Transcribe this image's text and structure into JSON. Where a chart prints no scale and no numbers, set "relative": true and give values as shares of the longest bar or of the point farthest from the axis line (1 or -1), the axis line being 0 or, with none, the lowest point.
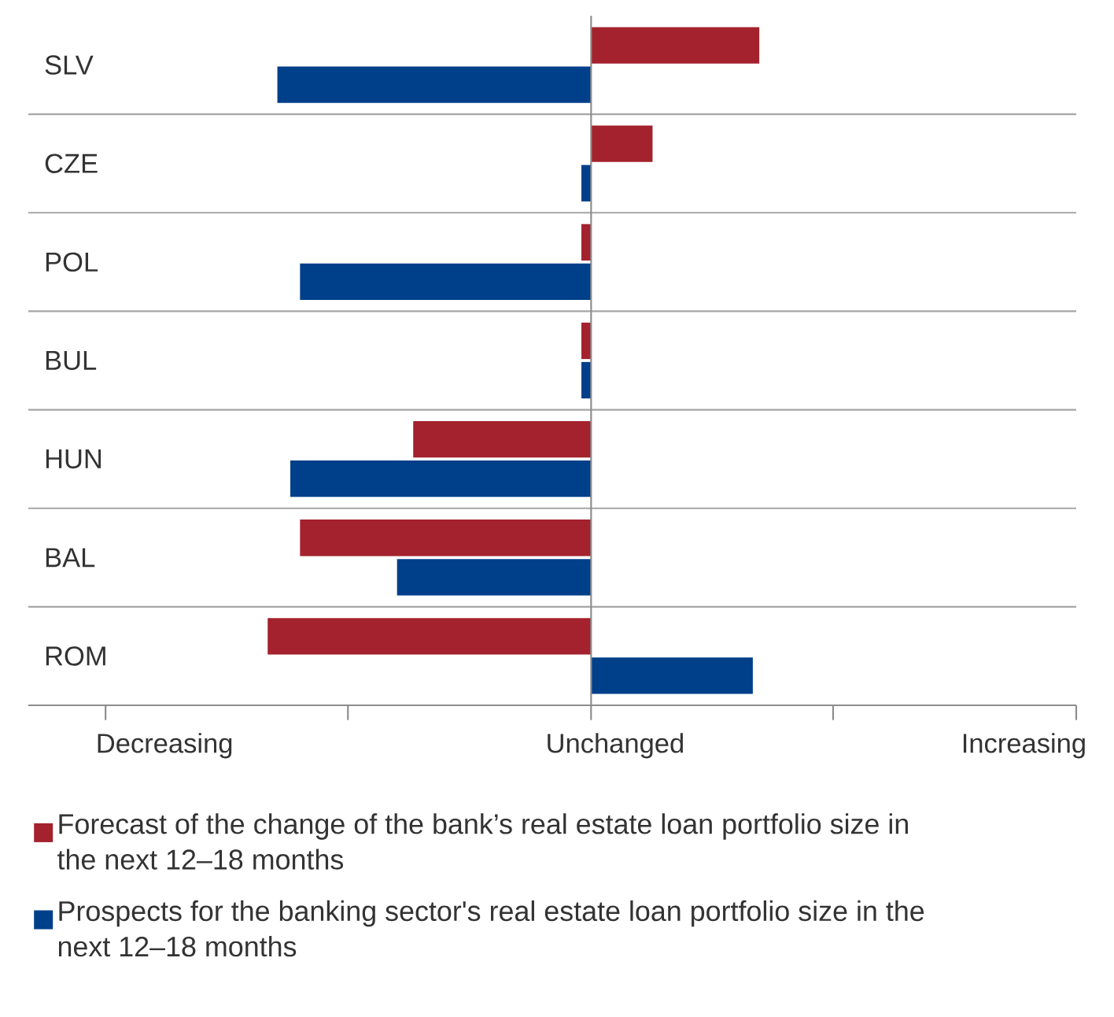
{
  "chart_data": {
    "type": "bar",
    "orientation": "horizontal",
    "relative": true,
    "categories": [
      "SLV",
      "CZE",
      "POL",
      "BUL",
      "HUN",
      "BAL",
      "ROM"
    ],
    "series": [
      {
        "name": "Forecast of the change of the bank’s real estate loan portfolio size in the next 12–18 months",
        "color": "#a3222d",
        "values": [
          0.52,
          0.19,
          -0.03,
          -0.03,
          -0.55,
          -0.9,
          -1
        ]
      },
      {
        "name": "Prospects for the banking sector's real estate loan portfolio size in the next 12–18 months",
        "color": "#003f8a",
        "values": [
          -0.97,
          -0.03,
          -0.9,
          -0.03,
          -0.93,
          -0.6,
          0.5
        ]
      }
    ],
    "annotations": [
      "Decreasing",
      "Unchanged",
      "Increasing"
    ],
    "grid": "y",
    "legend": "bottom"
  }
}
